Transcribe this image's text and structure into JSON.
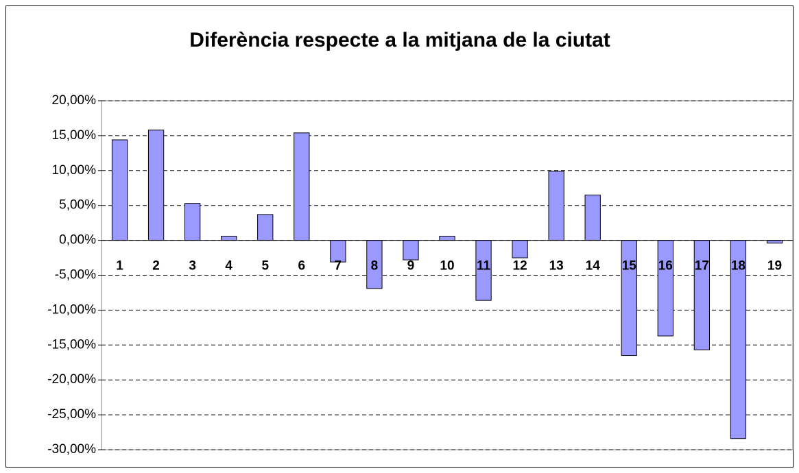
{
  "chart_data": {
    "type": "bar",
    "title": "Diferència respecte a la mitjana de la ciutat",
    "categories": [
      "1",
      "2",
      "3",
      "4",
      "5",
      "6",
      "7",
      "8",
      "9",
      "10",
      "11",
      "12",
      "13",
      "14",
      "15",
      "16",
      "17",
      "18",
      "19"
    ],
    "values": [
      14.4,
      15.8,
      5.3,
      0.6,
      3.7,
      15.4,
      -3.1,
      -6.9,
      -2.8,
      0.6,
      -8.6,
      -2.5,
      9.9,
      6.5,
      -16.5,
      -13.7,
      -15.7,
      -28.4,
      -0.4
    ],
    "color": "#9999ff",
    "ylim": [
      -30,
      20
    ],
    "yticks": [
      {
        "value": 20,
        "label": "20,00%"
      },
      {
        "value": 15,
        "label": "15,00%"
      },
      {
        "value": 10,
        "label": "10,00%"
      },
      {
        "value": 5,
        "label": "5,00%"
      },
      {
        "value": 0,
        "label": "0,00%"
      },
      {
        "value": -5,
        "label": "-5,00%"
      },
      {
        "value": -10,
        "label": "-10,00%"
      },
      {
        "value": -15,
        "label": "-15,00%"
      },
      {
        "value": -20,
        "label": "-20,00%"
      },
      {
        "value": -25,
        "label": "-25,00%"
      },
      {
        "value": -30,
        "label": "-30,00%"
      }
    ],
    "grid": true
  }
}
